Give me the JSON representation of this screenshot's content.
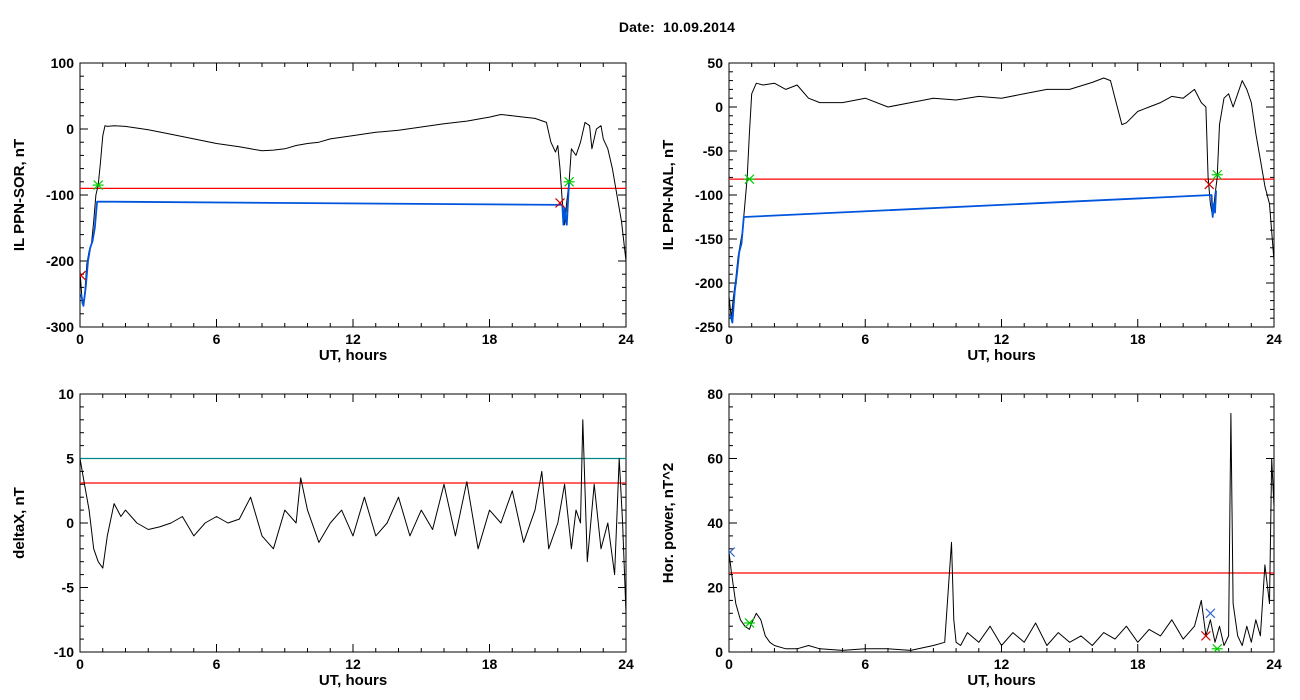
{
  "page": {
    "title": "Date:  10.09.2014"
  },
  "chart_data": [
    {
      "type": "line",
      "xlabel": "UT, hours",
      "ylabel": "IL PPN-SOR, nT",
      "xlim": [
        0,
        24
      ],
      "ylim": [
        -300,
        100
      ],
      "xticks": [
        "0",
        "6",
        "12",
        "18",
        "24"
      ],
      "yticks": [
        "-300",
        "-200",
        "-100",
        "0",
        "100"
      ],
      "threshold_line": {
        "value": -90,
        "color": "#ff0000"
      },
      "series": [
        {
          "color": "#000000",
          "x": [
            0,
            0.1,
            0.2,
            0.3,
            0.4,
            0.5,
            0.6,
            0.7,
            0.8,
            0.9,
            1.0,
            1.1,
            1.2,
            1.5,
            2.0,
            3.0,
            4.0,
            5.0,
            6.0,
            7.0,
            7.5,
            8.0,
            8.5,
            9.0,
            9.5,
            10.0,
            10.5,
            11.0,
            12.0,
            13.0,
            14.0,
            15.0,
            16.0,
            17.0,
            17.5,
            18.0,
            18.5,
            19.0,
            19.5,
            20.0,
            20.5,
            20.7,
            20.9,
            21.0,
            21.1,
            21.2,
            21.3,
            21.4,
            21.5,
            21.6,
            21.8,
            22.0,
            22.2,
            22.4,
            22.5,
            22.7,
            22.9,
            23.0,
            23.2,
            23.4,
            23.6,
            23.8,
            24.0
          ],
          "values": [
            -215,
            -265,
            -255,
            -205,
            -185,
            -175,
            -140,
            -100,
            -85,
            -50,
            -10,
            5,
            4,
            5,
            4,
            -1,
            -8,
            -15,
            -22,
            -27,
            -30,
            -33,
            -32,
            -30,
            -25,
            -22,
            -20,
            -15,
            -10,
            -5,
            -2,
            3,
            8,
            12,
            15,
            18,
            22,
            20,
            18,
            16,
            10,
            -20,
            -35,
            -25,
            -60,
            -110,
            -145,
            -110,
            -80,
            -30,
            -40,
            -20,
            10,
            5,
            -30,
            0,
            5,
            -15,
            -30,
            -60,
            -100,
            -140,
            -200
          ]
        },
        {
          "color": "#0055dd",
          "x": [
            0.05,
            0.15,
            0.25,
            0.35,
            0.45,
            0.55,
            0.65,
            0.75,
            21.2,
            21.25,
            21.3,
            21.35,
            21.4,
            21.45,
            21.5
          ],
          "values": [
            -250,
            -268,
            -240,
            -200,
            -180,
            -170,
            -150,
            -110,
            -115,
            -145,
            -120,
            -135,
            -145,
            -110,
            -80
          ]
        }
      ],
      "markers": [
        {
          "x": 0.8,
          "y": -85,
          "color": "#00cc00",
          "symbol": "asterisk"
        },
        {
          "x": 21.5,
          "y": -80,
          "color": "#00cc00",
          "symbol": "asterisk"
        },
        {
          "x": 21.1,
          "y": -112,
          "color": "#cc0000",
          "symbol": "x"
        },
        {
          "x": 0.05,
          "y": -222,
          "color": "#cc0000",
          "symbol": "x"
        }
      ]
    },
    {
      "type": "line",
      "xlabel": "UT, hours",
      "ylabel": "IL PPN-NAL, nT",
      "xlim": [
        0,
        24
      ],
      "ylim": [
        -250,
        50
      ],
      "xticks": [
        "0",
        "6",
        "12",
        "18",
        "24"
      ],
      "yticks": [
        "-250",
        "-200",
        "-150",
        "-100",
        "-50",
        "0",
        "50"
      ],
      "threshold_line": {
        "value": -82,
        "color": "#ff0000"
      },
      "series": [
        {
          "color": "#000000",
          "x": [
            0,
            0.1,
            0.2,
            0.3,
            0.4,
            0.5,
            0.6,
            0.7,
            0.8,
            0.9,
            1.0,
            1.2,
            1.5,
            2.0,
            2.5,
            3.0,
            3.5,
            4.0,
            5.0,
            6.0,
            7.0,
            8.0,
            9.0,
            10.0,
            11.0,
            12.0,
            13.0,
            14.0,
            15.0,
            16.0,
            16.5,
            16.8,
            17.0,
            17.3,
            17.5,
            18.0,
            18.5,
            19.0,
            19.5,
            20.0,
            20.5,
            20.8,
            21.0,
            21.1,
            21.2,
            21.3,
            21.4,
            21.5,
            21.6,
            21.8,
            22.0,
            22.2,
            22.4,
            22.6,
            22.8,
            23.0,
            23.2,
            23.4,
            23.6,
            23.8,
            24.0
          ],
          "values": [
            -215,
            -240,
            -215,
            -195,
            -170,
            -155,
            -140,
            -110,
            -80,
            -30,
            15,
            27,
            25,
            27,
            20,
            25,
            10,
            5,
            5,
            10,
            0,
            5,
            10,
            8,
            12,
            10,
            15,
            20,
            20,
            28,
            33,
            30,
            10,
            -20,
            -18,
            -5,
            0,
            5,
            12,
            10,
            20,
            5,
            0,
            -80,
            -110,
            -125,
            -100,
            -80,
            -20,
            10,
            15,
            0,
            15,
            30,
            20,
            5,
            -30,
            -60,
            -90,
            -110,
            -175
          ]
        },
        {
          "color": "#0055dd",
          "x": [
            0.05,
            0.15,
            0.25,
            0.35,
            0.45,
            0.55,
            0.65,
            21.25,
            21.3,
            21.35,
            21.4,
            21.45
          ],
          "values": [
            -235,
            -245,
            -210,
            -190,
            -165,
            -155,
            -125,
            -100,
            -125,
            -110,
            -120,
            -95
          ]
        }
      ],
      "markers": [
        {
          "x": 0.9,
          "y": -82,
          "color": "#00cc00",
          "symbol": "asterisk"
        },
        {
          "x": 21.5,
          "y": -77,
          "color": "#00cc00",
          "symbol": "asterisk"
        },
        {
          "x": 21.15,
          "y": -88,
          "color": "#cc0000",
          "symbol": "x"
        }
      ]
    },
    {
      "type": "line",
      "xlabel": "UT, hours",
      "ylabel": "deltaX, nT",
      "xlim": [
        0,
        24
      ],
      "ylim": [
        -10,
        10
      ],
      "xticks": [
        "0",
        "6",
        "12",
        "18",
        "24"
      ],
      "yticks": [
        "-10",
        "-5",
        "0",
        "5",
        "10"
      ],
      "threshold_lines": [
        {
          "value": 5,
          "color": "#008888"
        },
        {
          "value": 3.1,
          "color": "#ff0000"
        }
      ],
      "series": [
        {
          "color": "#000000",
          "x": [
            0,
            0.2,
            0.4,
            0.6,
            0.8,
            1.0,
            1.2,
            1.5,
            1.8,
            2.0,
            2.5,
            3.0,
            3.5,
            4.0,
            4.5,
            5.0,
            5.5,
            6.0,
            6.5,
            7.0,
            7.5,
            8.0,
            8.5,
            9.0,
            9.5,
            9.7,
            10.0,
            10.5,
            11.0,
            11.5,
            12.0,
            12.5,
            13.0,
            13.5,
            14.0,
            14.5,
            15.0,
            15.5,
            16.0,
            16.5,
            17.0,
            17.5,
            18.0,
            18.5,
            19.0,
            19.5,
            20.0,
            20.3,
            20.6,
            21.0,
            21.3,
            21.6,
            21.8,
            22.0,
            22.1,
            22.3,
            22.6,
            22.9,
            23.2,
            23.5,
            23.7,
            23.85,
            24.0
          ],
          "values": [
            5,
            3,
            1,
            -2,
            -3,
            -3.5,
            -1,
            1.5,
            0.5,
            1,
            0,
            -0.5,
            -0.3,
            0,
            0.5,
            -1,
            0,
            0.5,
            0,
            0.3,
            2,
            -1,
            -2,
            1,
            0,
            3.5,
            1,
            -1.5,
            0,
            1,
            -1,
            2,
            -1,
            0,
            2,
            -1,
            1,
            -0.5,
            3,
            -1,
            3.2,
            -2,
            1,
            0,
            2.5,
            -1.5,
            1,
            4,
            -2,
            0,
            3,
            -2,
            1,
            0,
            8,
            -3,
            3,
            -2,
            0,
            -4,
            5,
            0,
            -7
          ]
        }
      ]
    },
    {
      "type": "line",
      "xlabel": "UT, hours",
      "ylabel": "Hor. power, nT^2",
      "xlim": [
        0,
        24
      ],
      "ylim": [
        0,
        80
      ],
      "xticks": [
        "0",
        "6",
        "12",
        "18",
        "24"
      ],
      "yticks": [
        "0",
        "20",
        "40",
        "60",
        "80"
      ],
      "threshold_line": {
        "value": 24.5,
        "color": "#ff0000"
      },
      "series": [
        {
          "color": "#000000",
          "x": [
            0,
            0.1,
            0.3,
            0.5,
            0.7,
            0.9,
            1.0,
            1.2,
            1.4,
            1.6,
            1.8,
            2.0,
            2.5,
            3.0,
            3.5,
            4.0,
            5.0,
            6.0,
            7.0,
            8.0,
            9.0,
            9.5,
            9.8,
            9.9,
            10.0,
            10.2,
            10.5,
            11.0,
            11.5,
            12.0,
            12.5,
            13.0,
            13.5,
            14.0,
            14.5,
            15.0,
            15.5,
            16.0,
            16.5,
            17.0,
            17.5,
            18.0,
            18.5,
            19.0,
            19.5,
            20.0,
            20.5,
            20.8,
            21.0,
            21.2,
            21.4,
            21.6,
            21.8,
            22.0,
            22.1,
            22.2,
            22.4,
            22.6,
            22.8,
            23.0,
            23.2,
            23.4,
            23.6,
            23.8,
            23.9,
            24.0
          ],
          "values": [
            31,
            25,
            15,
            10,
            8,
            7,
            9,
            12,
            10,
            5,
            3,
            2,
            1,
            1,
            2,
            1,
            0.5,
            1,
            1,
            0.5,
            2,
            3,
            34,
            10,
            3,
            2,
            6,
            3,
            8,
            2,
            6,
            3,
            9,
            2,
            6,
            3,
            5,
            2,
            6,
            4,
            8,
            3,
            7,
            5,
            10,
            4,
            8,
            16,
            5,
            10,
            3,
            8,
            2,
            5,
            74,
            15,
            5,
            2,
            8,
            3,
            10,
            5,
            27,
            15,
            60,
            45
          ]
        }
      ],
      "markers": [
        {
          "x": 0.05,
          "y": 31,
          "color": "#3366cc",
          "symbol": "x"
        },
        {
          "x": 0.9,
          "y": 9,
          "color": "#00cc00",
          "symbol": "asterisk"
        },
        {
          "x": 21.2,
          "y": 12,
          "color": "#3366cc",
          "symbol": "x"
        },
        {
          "x": 21.0,
          "y": 5,
          "color": "#cc0000",
          "symbol": "x"
        },
        {
          "x": 21.5,
          "y": 1,
          "color": "#00cc00",
          "symbol": "asterisk"
        }
      ]
    }
  ]
}
